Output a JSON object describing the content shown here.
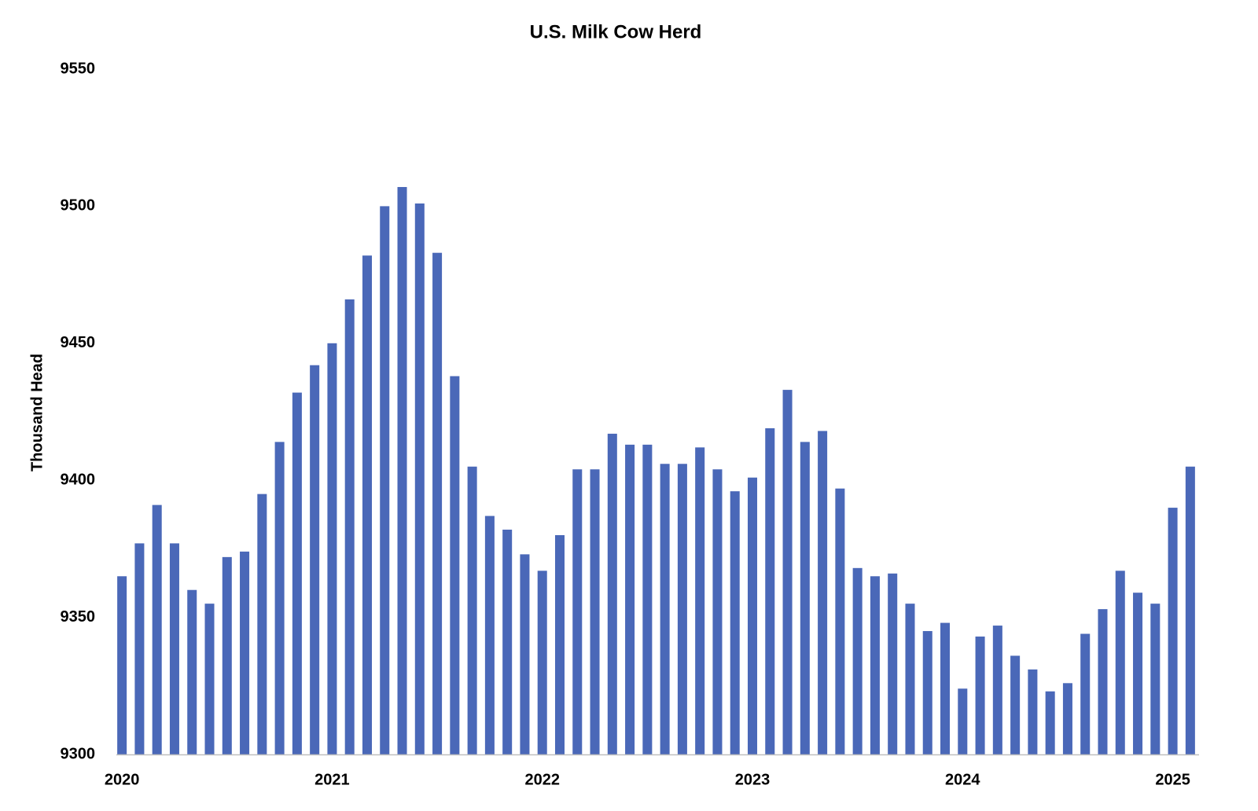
{
  "chart_data": {
    "type": "bar",
    "title": "U.S. Milk Cow Herd",
    "y_label": "Thousand Head",
    "categories": [
      "2020",
      null,
      null,
      null,
      null,
      null,
      null,
      null,
      null,
      null,
      null,
      null,
      "2021",
      null,
      null,
      null,
      null,
      null,
      null,
      null,
      null,
      null,
      null,
      null,
      "2022",
      null,
      null,
      null,
      null,
      null,
      null,
      null,
      null,
      null,
      null,
      null,
      "2023",
      null,
      null,
      null,
      null,
      null,
      null,
      null,
      null,
      null,
      null,
      null,
      "2024",
      null,
      null,
      null,
      null,
      null,
      null,
      null,
      null,
      null,
      null,
      null,
      "2025",
      null
    ],
    "values": [
      9365,
      9377,
      9391,
      9377,
      9360,
      9355,
      9372,
      9374,
      9395,
      9414,
      9432,
      9442,
      9450,
      9466,
      9482,
      9500,
      9507,
      9501,
      9483,
      9438,
      9405,
      9387,
      9382,
      9373,
      9367,
      9380,
      9404,
      9404,
      9417,
      9413,
      9413,
      9406,
      9406,
      9412,
      9404,
      9396,
      9401,
      9419,
      9433,
      9414,
      9418,
      9397,
      9368,
      9365,
      9366,
      9355,
      9345,
      9348,
      9324,
      9343,
      9347,
      9336,
      9331,
      9323,
      9326,
      9344,
      9353,
      9367,
      9359,
      9355,
      9390,
      9405
    ],
    "color": "#4a68b8",
    "ylim": [
      9300,
      9550
    ],
    "yticks": [
      9300,
      9350,
      9400,
      9450,
      9500,
      9550
    ],
    "grid": false
  }
}
